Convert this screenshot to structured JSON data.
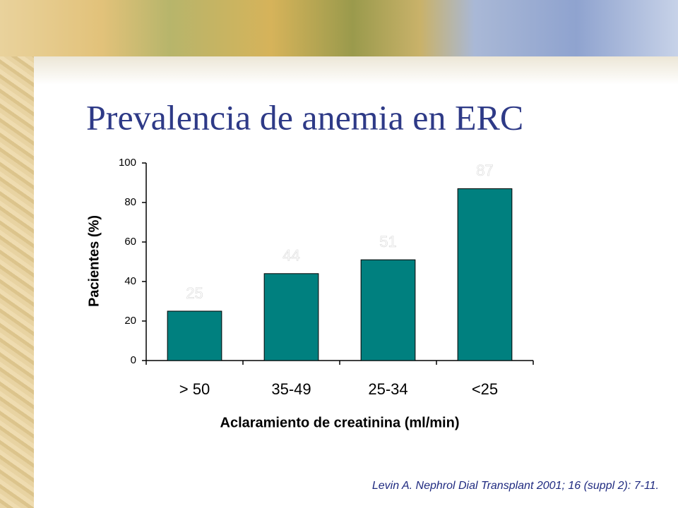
{
  "chart_data": {
    "type": "bar",
    "title": "Prevalencia de anemia en ERC",
    "y_label": "Pacientes (%)",
    "x_label": "Aclaramiento de creatinina (ml/min)",
    "source": "Levin A. Nephrol Dial Transplant 2001; 16 (suppl 2): 7-11.",
    "categories": [
      "> 50",
      "35-49",
      "25-34",
      "<25"
    ],
    "values": [
      25,
      44,
      51,
      87
    ],
    "color": "#00807f",
    "ylim": [
      0,
      100
    ],
    "yticks": [
      0,
      20,
      40,
      60,
      80,
      100
    ],
    "grid": false
  }
}
